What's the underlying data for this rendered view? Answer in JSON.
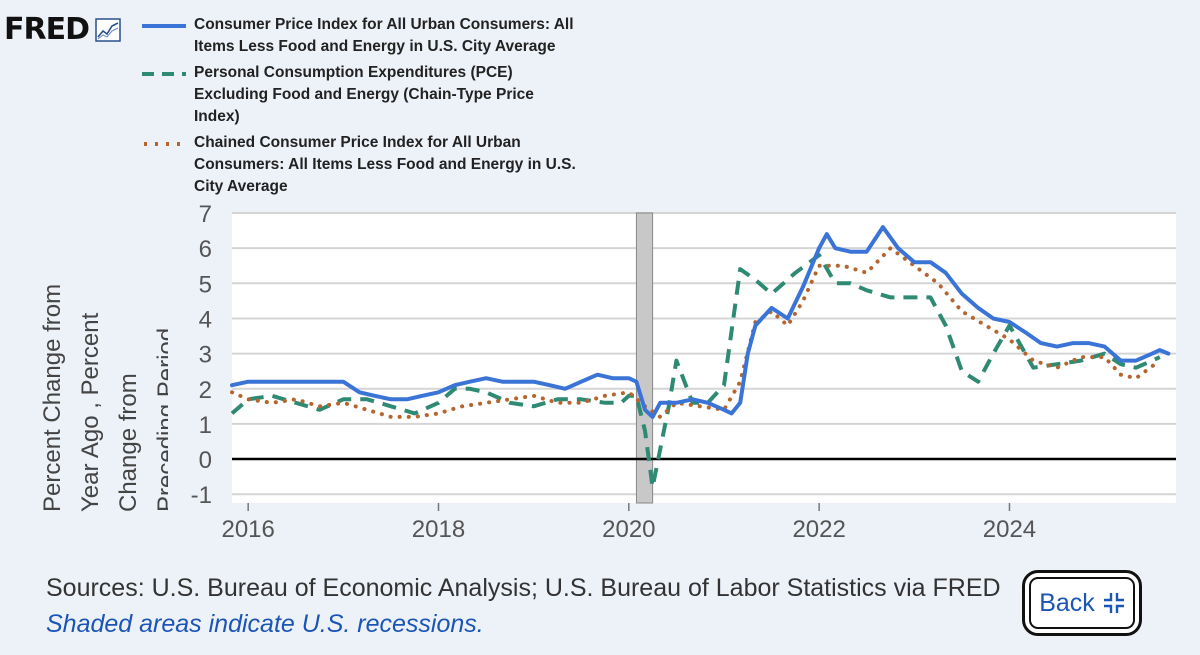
{
  "logo": {
    "text": "FRED"
  },
  "chart_data": {
    "type": "line",
    "x_range": [
      2015.83,
      2025.75
    ],
    "ylim": [
      -1.25,
      7
    ],
    "yticks": [
      -1,
      0,
      1,
      2,
      3,
      4,
      5,
      6,
      7
    ],
    "xticks": [
      {
        "value": 2016,
        "label": "2016"
      },
      {
        "value": 2018,
        "label": "2018"
      },
      {
        "value": 2020,
        "label": "2020"
      },
      {
        "value": 2022,
        "label": "2022"
      },
      {
        "value": 2024,
        "label": "2024"
      }
    ],
    "ylabel_lines": [
      "Percent Change from",
      "Year Ago , Percent",
      "Change from",
      "Preceding Period"
    ],
    "recession": {
      "start": 2020.08,
      "end": 2020.25
    },
    "zero_line": 0,
    "series": [
      {
        "name": "Consumer Price Index for All Urban Consumers: All Items Less Food and Energy in U.S. City Average",
        "legend_lines": [
          "Consumer Price Index for All Urban Consumers: All",
          "Items Less Food and Energy in U.S. City Average"
        ],
        "color": "#3a74d6",
        "style": "solid",
        "x": [
          2015.83,
          2016.0,
          2016.17,
          2016.33,
          2016.5,
          2016.67,
          2016.83,
          2017.0,
          2017.17,
          2017.33,
          2017.5,
          2017.67,
          2017.83,
          2018.0,
          2018.17,
          2018.33,
          2018.5,
          2018.67,
          2018.83,
          2019.0,
          2019.17,
          2019.33,
          2019.5,
          2019.67,
          2019.83,
          2020.0,
          2020.08,
          2020.17,
          2020.25,
          2020.33,
          2020.5,
          2020.67,
          2020.83,
          2021.0,
          2021.08,
          2021.17,
          2021.25,
          2021.33,
          2021.5,
          2021.67,
          2021.83,
          2022.0,
          2022.08,
          2022.17,
          2022.33,
          2022.5,
          2022.67,
          2022.83,
          2023.0,
          2023.17,
          2023.33,
          2023.5,
          2023.67,
          2023.83,
          2024.0,
          2024.17,
          2024.33,
          2024.5,
          2024.67,
          2024.83,
          2025.0,
          2025.17,
          2025.33,
          2025.5,
          2025.58,
          2025.67
        ],
        "values": [
          2.1,
          2.2,
          2.2,
          2.2,
          2.2,
          2.2,
          2.2,
          2.2,
          1.9,
          1.8,
          1.7,
          1.7,
          1.8,
          1.9,
          2.1,
          2.2,
          2.3,
          2.2,
          2.2,
          2.2,
          2.1,
          2.0,
          2.2,
          2.4,
          2.3,
          2.3,
          2.2,
          1.4,
          1.2,
          1.6,
          1.6,
          1.7,
          1.6,
          1.4,
          1.3,
          1.6,
          3.0,
          3.8,
          4.3,
          4.0,
          4.9,
          6.0,
          6.4,
          6.0,
          5.9,
          5.9,
          6.6,
          6.0,
          5.6,
          5.6,
          5.3,
          4.7,
          4.3,
          4.0,
          3.9,
          3.6,
          3.3,
          3.2,
          3.3,
          3.3,
          3.2,
          2.8,
          2.8,
          3.0,
          3.1,
          3.0
        ]
      },
      {
        "name": "Personal Consumption Expenditures (PCE) Excluding Food and Energy (Chain-Type Price Index)",
        "legend_lines": [
          "Personal Consumption Expenditures (PCE)",
          "Excluding Food and Energy (Chain-Type Price",
          "Index)"
        ],
        "color": "#2f8a74",
        "style": "dash",
        "x": [
          2015.83,
          2016.0,
          2016.25,
          2016.5,
          2016.75,
          2017.0,
          2017.25,
          2017.5,
          2017.75,
          2018.0,
          2018.17,
          2018.33,
          2018.5,
          2018.75,
          2019.0,
          2019.25,
          2019.5,
          2019.75,
          2019.92,
          2020.0,
          2020.08,
          2020.17,
          2020.25,
          2020.42,
          2020.5,
          2020.67,
          2020.83,
          2021.0,
          2021.17,
          2021.33,
          2021.5,
          2021.75,
          2022.0,
          2022.17,
          2022.33,
          2022.5,
          2022.75,
          2023.0,
          2023.17,
          2023.33,
          2023.5,
          2023.67,
          2023.83,
          2024.0,
          2024.25,
          2024.5,
          2024.75,
          2025.0,
          2025.17,
          2025.33,
          2025.5,
          2025.58
        ],
        "values": [
          1.3,
          1.7,
          1.8,
          1.6,
          1.4,
          1.7,
          1.7,
          1.5,
          1.3,
          1.6,
          2.0,
          2.0,
          1.9,
          1.6,
          1.5,
          1.7,
          1.7,
          1.6,
          1.6,
          1.8,
          1.8,
          0.8,
          -0.8,
          1.5,
          2.8,
          1.6,
          1.6,
          2.1,
          5.4,
          5.1,
          4.7,
          5.3,
          5.8,
          5.0,
          5.0,
          4.8,
          4.6,
          4.6,
          4.6,
          3.8,
          2.5,
          2.2,
          3.0,
          3.8,
          2.6,
          2.7,
          2.8,
          3.0,
          2.7,
          2.6,
          2.8,
          2.9
        ]
      },
      {
        "name": "Chained Consumer Price Index for All Urban Consumers: All Items Less Food and Energy in U.S. City Average",
        "legend_lines": [
          "Chained Consumer Price Index for All Urban",
          "Consumers: All Items Less Food and Energy in U.S.",
          "City Average"
        ],
        "color": "#b5652e",
        "style": "dot",
        "x": [
          2015.83,
          2016.0,
          2016.25,
          2016.5,
          2016.75,
          2017.0,
          2017.25,
          2017.5,
          2017.75,
          2018.0,
          2018.25,
          2018.5,
          2018.75,
          2019.0,
          2019.25,
          2019.5,
          2019.75,
          2020.0,
          2020.17,
          2020.33,
          2020.5,
          2020.75,
          2021.0,
          2021.17,
          2021.33,
          2021.5,
          2021.67,
          2021.83,
          2022.0,
          2022.25,
          2022.5,
          2022.75,
          2023.0,
          2023.25,
          2023.5,
          2023.75,
          2024.0,
          2024.25,
          2024.5,
          2024.75,
          2025.0,
          2025.17,
          2025.33,
          2025.58
        ],
        "values": [
          1.9,
          1.7,
          1.6,
          1.7,
          1.5,
          1.6,
          1.4,
          1.2,
          1.2,
          1.3,
          1.5,
          1.6,
          1.7,
          1.8,
          1.6,
          1.6,
          1.8,
          1.9,
          1.5,
          1.2,
          1.6,
          1.5,
          1.4,
          2.2,
          3.9,
          4.2,
          3.8,
          4.5,
          5.5,
          5.5,
          5.3,
          6.0,
          5.5,
          5.0,
          4.2,
          3.8,
          3.4,
          2.8,
          2.6,
          2.9,
          2.9,
          2.4,
          2.3,
          2.8
        ]
      }
    ]
  },
  "footer": {
    "sources": "Sources: U.S. Bureau of Economic Analysis; U.S. Bureau of Labor Statistics via FRED",
    "note": "Shaded areas indicate U.S. recessions."
  },
  "back_button": {
    "label": "Back"
  }
}
